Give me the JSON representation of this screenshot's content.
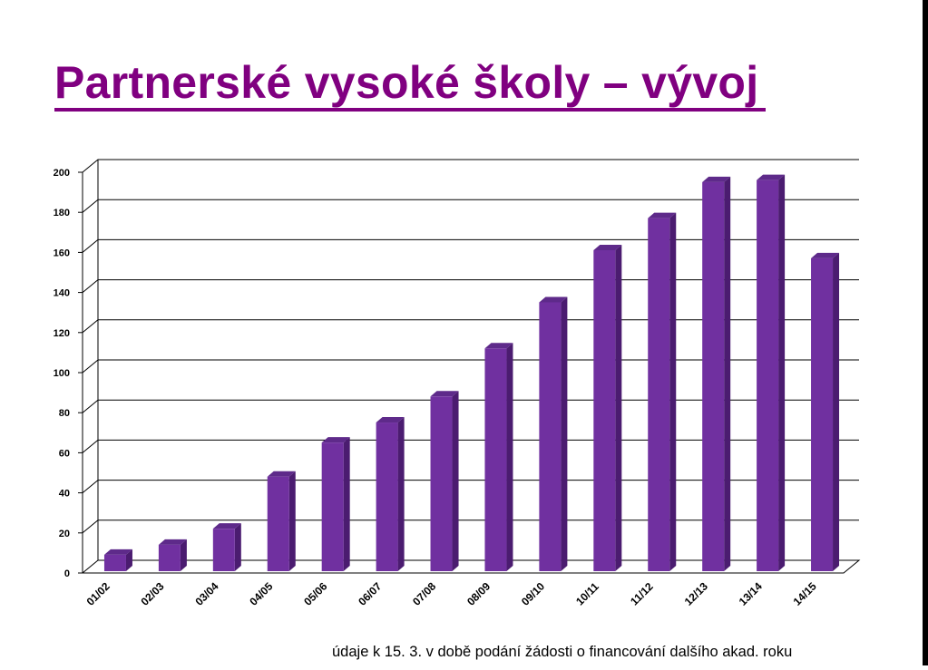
{
  "slide": {
    "title": "Partnerské vysoké školy – vývoj",
    "footnote": "údaje k 15. 3. v době podání žádosti o financování dalšího akad. roku"
  },
  "colors": {
    "title": "#800080",
    "bar_front": "#7030A0",
    "bar_side": "#4B1C70",
    "bar_top": "#5E2A8A",
    "gridline": "#000000"
  },
  "chart_data": {
    "type": "bar",
    "categories": [
      "01/02",
      "02/03",
      "03/04",
      "04/05",
      "05/06",
      "06/07",
      "07/08",
      "08/09",
      "09/10",
      "10/11",
      "11/12",
      "12/13",
      "13/14",
      "14/15"
    ],
    "values": [
      10,
      15,
      23,
      49,
      66,
      76,
      89,
      113,
      136,
      162,
      178,
      196,
      197,
      158
    ],
    "ylim": [
      0,
      200
    ],
    "yticks": [
      0,
      20,
      40,
      60,
      80,
      100,
      120,
      140,
      160,
      180,
      200
    ],
    "grid": true,
    "legend": "none",
    "style": "3d-column"
  }
}
